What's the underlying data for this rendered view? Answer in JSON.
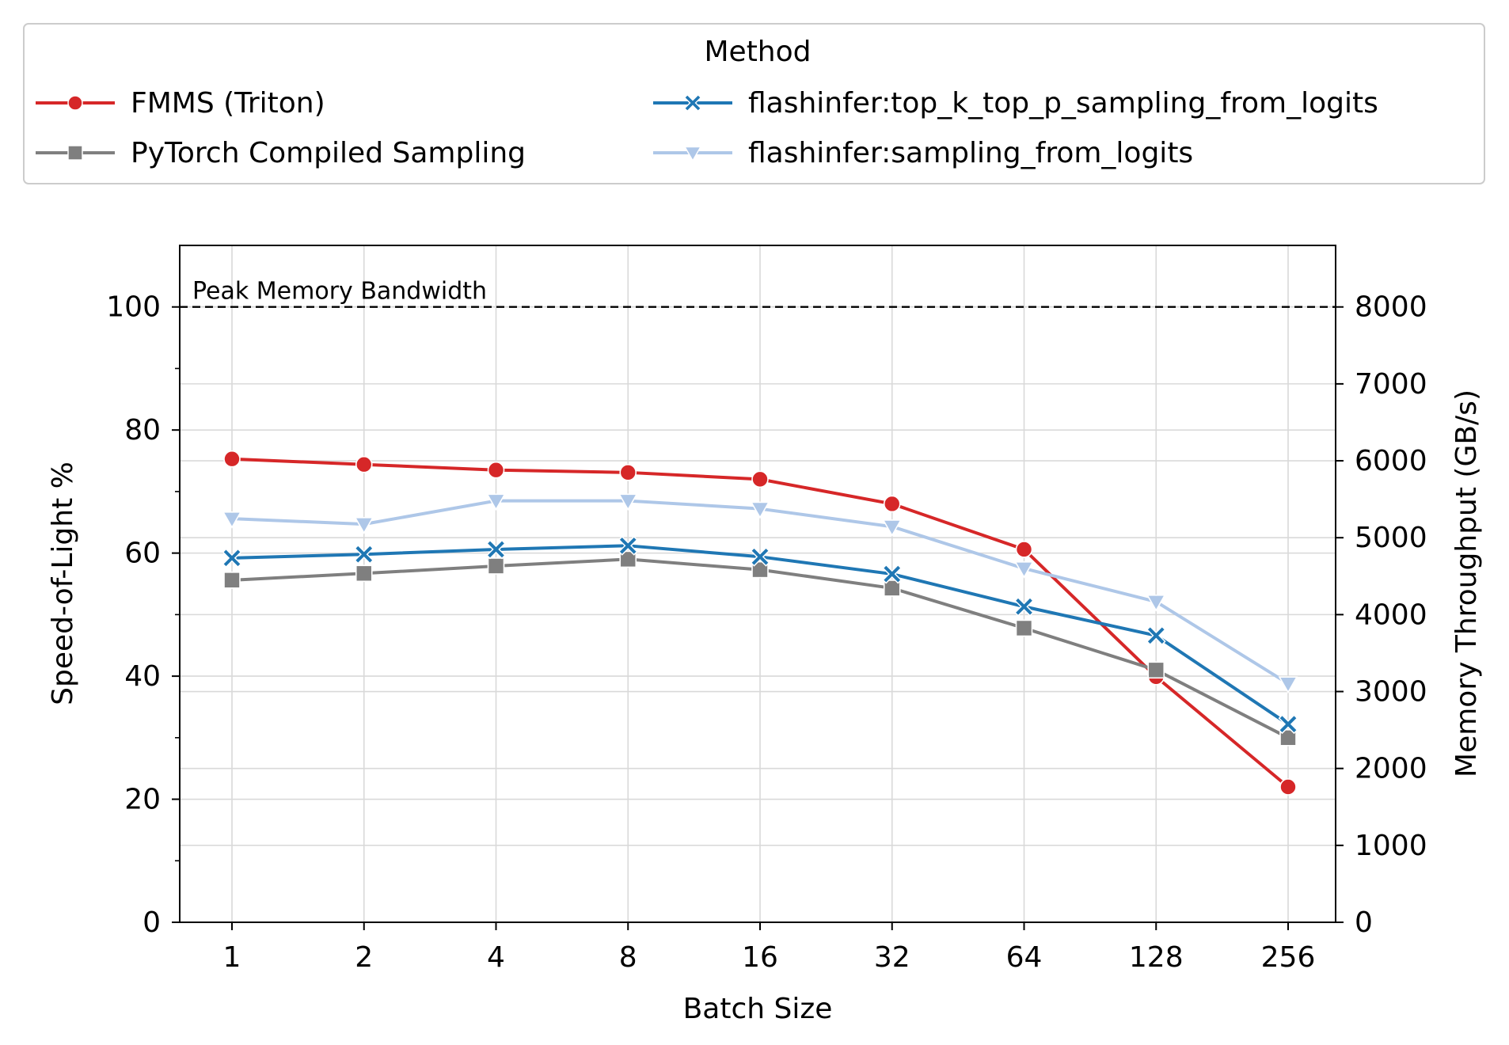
{
  "chart_data": {
    "type": "line",
    "xlabel": "Batch Size",
    "ylabel": "Speed-of-Light %",
    "y2label": "Memory Throughput (GB/s)",
    "categories": [
      "1",
      "2",
      "4",
      "8",
      "16",
      "32",
      "64",
      "128",
      "256"
    ],
    "ylim": [
      0,
      110
    ],
    "y2lim": [
      0,
      8800
    ],
    "yticks": [
      0,
      20,
      40,
      60,
      80,
      100
    ],
    "y2ticks": [
      0,
      1000,
      2000,
      3000,
      4000,
      5000,
      6000,
      7000,
      8000
    ],
    "grid": true,
    "reference_line": {
      "y": 100,
      "label": "Peak Memory Bandwidth",
      "style": "dashed"
    },
    "legend": {
      "title": "Method",
      "placement": "top"
    },
    "series": [
      {
        "name": "FMMS (Triton)",
        "color": "#d62728",
        "marker": "circle",
        "values": [
          75.3,
          74.4,
          73.5,
          73.1,
          72.0,
          68.0,
          60.6,
          39.9,
          22.0
        ]
      },
      {
        "name": "PyTorch Compiled Sampling",
        "color": "#7f7f7f",
        "marker": "square",
        "values": [
          55.6,
          56.7,
          57.9,
          59.0,
          57.3,
          54.3,
          47.8,
          41.0,
          30.0
        ]
      },
      {
        "name": "flashinfer:top_k_top_p_sampling_from_logits",
        "color": "#1f77b4",
        "marker": "x",
        "values": [
          59.2,
          59.8,
          60.6,
          61.2,
          59.4,
          56.6,
          51.3,
          46.6,
          32.2
        ]
      },
      {
        "name": "flashinfer:sampling_from_logits",
        "color": "#aec7e8",
        "marker": "triangle-down",
        "values": [
          65.6,
          64.7,
          68.5,
          68.5,
          67.2,
          64.3,
          57.5,
          52.1,
          38.8
        ]
      }
    ]
  }
}
